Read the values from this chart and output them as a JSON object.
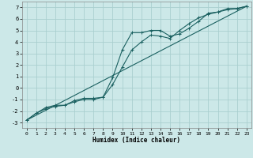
{
  "xlabel": "Humidex (Indice chaleur)",
  "bg_color": "#cce8e8",
  "grid_color": "#aacfcf",
  "line_color": "#1a6060",
  "xlim": [
    -0.5,
    23.5
  ],
  "ylim": [
    -3.5,
    7.5
  ],
  "xticks": [
    0,
    1,
    2,
    3,
    4,
    5,
    6,
    7,
    8,
    9,
    10,
    11,
    12,
    13,
    14,
    15,
    16,
    17,
    18,
    19,
    20,
    21,
    22,
    23
  ],
  "yticks": [
    -3,
    -2,
    -1,
    0,
    1,
    2,
    3,
    4,
    5,
    6,
    7
  ],
  "line1_x": [
    0,
    1,
    2,
    3,
    4,
    5,
    6,
    7,
    8,
    9,
    10,
    11,
    12,
    13,
    14,
    15,
    16,
    17,
    18,
    19,
    20,
    21,
    22,
    23
  ],
  "line1_y": [
    -2.8,
    -2.2,
    -1.8,
    -1.6,
    -1.5,
    -1.1,
    -0.9,
    -0.9,
    -0.8,
    0.9,
    3.3,
    4.8,
    4.8,
    5.0,
    5.0,
    4.5,
    4.7,
    5.2,
    5.8,
    6.5,
    6.6,
    6.8,
    6.9,
    7.1
  ],
  "line2_x": [
    0,
    1,
    2,
    3,
    4,
    5,
    6,
    7,
    8,
    9,
    10,
    11,
    12,
    13,
    14,
    15,
    16,
    17,
    18,
    19,
    20,
    21,
    22,
    23
  ],
  "line2_y": [
    -2.8,
    -2.2,
    -1.7,
    -1.5,
    -1.5,
    -1.2,
    -1.0,
    -1.0,
    -0.8,
    0.3,
    1.8,
    3.3,
    4.0,
    4.6,
    4.5,
    4.3,
    5.0,
    5.6,
    6.1,
    6.4,
    6.6,
    6.9,
    6.9,
    7.1
  ],
  "line3_x": [
    0,
    23
  ],
  "line3_y": [
    -2.8,
    7.1
  ]
}
